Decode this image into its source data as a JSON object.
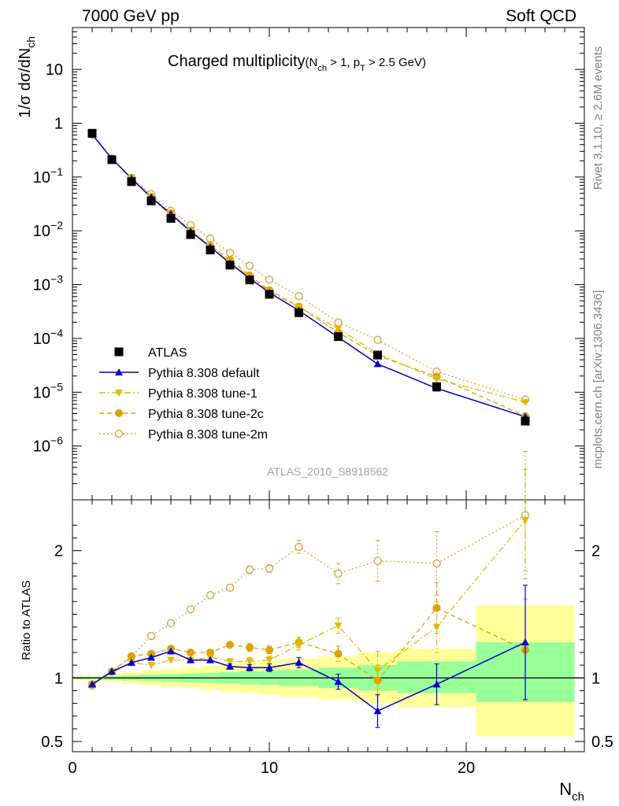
{
  "header": {
    "left": "7000 GeV pp",
    "right": "Soft QCD"
  },
  "side_labels": {
    "rivet": "Rivet 3.1.10, ≥ 2.6M events",
    "mcplots": "mcplots.cern.ch [arXiv:1306.3436]"
  },
  "analysis_id": "ATLAS_2010_S8918562",
  "title": {
    "main": "Charged multiplicity",
    "sub_open": "(N",
    "sub_ch": "ch",
    "sub_mid": " > 1, p",
    "sub_t": "T",
    "sub_end": " > 2.5 GeV)"
  },
  "colors": {
    "data": "#000000",
    "default": "#0000cc",
    "tune1": "#e6b800",
    "tune2c": "#e0a000",
    "tune2m": "#e0a040",
    "band_inner": "#99ff99",
    "band_outer": "#ffff99"
  },
  "chart_data": [
    {
      "type": "scatter",
      "panel": "main",
      "ylabel": "1/σ dσ/dN_ch",
      "yscale": "log",
      "xlim": [
        0,
        26
      ],
      "ylim": [
        1e-07,
        60
      ],
      "ytick_labels": [
        {
          "value": 10,
          "base": "10",
          "exp": ""
        },
        {
          "value": 1,
          "base": "1",
          "exp": ""
        },
        {
          "value": 0.1,
          "base": "10",
          "exp": "−1"
        },
        {
          "value": 0.01,
          "base": "10",
          "exp": "−2"
        },
        {
          "value": 0.001,
          "base": "10",
          "exp": "−3"
        },
        {
          "value": 0.0001,
          "base": "10",
          "exp": "−4"
        },
        {
          "value": 1e-05,
          "base": "10",
          "exp": "−5"
        },
        {
          "value": 1e-06,
          "base": "10",
          "exp": "−6"
        }
      ],
      "legend_position": "lower-left",
      "series": [
        {
          "key": "data",
          "name": "ATLAS",
          "style": "square",
          "x": [
            1,
            2,
            3,
            4,
            5,
            6,
            7,
            8,
            9,
            10,
            11.5,
            13.5,
            15.5,
            18.5,
            23
          ],
          "y": [
            0.65,
            0.21,
            0.082,
            0.036,
            0.017,
            0.0085,
            0.0044,
            0.0023,
            0.00122,
            0.00066,
            0.0003,
            0.000108,
            4.9e-05,
            1.27e-05,
            2.9e-06
          ]
        },
        {
          "key": "default",
          "name": "Pythia 8.308 default",
          "style": "triangle-up",
          "x": [
            1,
            2,
            3,
            4,
            5,
            6,
            7,
            8,
            9,
            10,
            11.5,
            13.5,
            15.5,
            18.5,
            23
          ],
          "y": [
            0.62,
            0.22,
            0.093,
            0.042,
            0.0205,
            0.0097,
            0.005,
            0.0025,
            0.00131,
            0.00071,
            0.00033,
            0.000105,
            3.35e-05,
            1.18e-05,
            3.5e-06
          ]
        },
        {
          "key": "tune1",
          "name": "Pythia 8.308 tune-1",
          "style": "triangle-down",
          "x": [
            1,
            2,
            3,
            4,
            5,
            6,
            7,
            8,
            9,
            10,
            11.5,
            13.5,
            15.5,
            18.5,
            23
          ],
          "y": [
            0.62,
            0.22,
            0.094,
            0.04,
            0.0195,
            0.0097,
            0.0051,
            0.0026,
            0.00138,
            0.00075,
            0.00038,
            0.000152,
            5.2e-05,
            1.76e-05,
            6.5e-06
          ]
        },
        {
          "key": "tune2c",
          "name": "Pythia 8.308 tune-2c",
          "style": "circle-filled",
          "x": [
            1,
            2,
            3,
            4,
            5,
            6,
            7,
            8,
            9,
            10,
            11.5,
            13.5,
            15.5,
            18.5,
            23
          ],
          "y": [
            0.62,
            0.22,
            0.096,
            0.043,
            0.0212,
            0.0102,
            0.0053,
            0.0029,
            0.00148,
            0.00079,
            0.00039,
            0.000129,
            4.8e-05,
            1.95e-05,
            3.6e-06
          ]
        },
        {
          "key": "tune2m",
          "name": "Pythia 8.308 tune-2m",
          "style": "circle-open",
          "x": [
            1,
            2,
            3,
            4,
            5,
            6,
            7,
            8,
            9,
            10,
            11.5,
            13.5,
            15.5,
            18.5,
            23
          ],
          "y": [
            0.61,
            0.22,
            0.097,
            0.048,
            0.0236,
            0.0128,
            0.0072,
            0.0039,
            0.00225,
            0.00124,
            0.00061,
            0.000198,
            9.4e-05,
            2.42e-05,
            7.3e-06
          ]
        }
      ]
    },
    {
      "type": "scatter",
      "panel": "ratio",
      "xlabel": "N_ch",
      "ylabel": "Ratio to ATLAS",
      "xlim": [
        0,
        26
      ],
      "ylim": [
        0.42,
        2.4
      ],
      "xticks": [
        0,
        10,
        20
      ],
      "yticks": [
        0.5,
        1,
        2
      ],
      "bands": {
        "edges": [
          0,
          1.5,
          2.5,
          3.5,
          4.5,
          5.5,
          6.5,
          7.5,
          8.5,
          9.5,
          10.5,
          12.5,
          14.5,
          16.5,
          20.5,
          25.5
        ],
        "inner_lo": [
          0.99,
          0.985,
          0.98,
          0.975,
          0.97,
          0.965,
          0.96,
          0.955,
          0.95,
          0.945,
          0.935,
          0.92,
          0.9,
          0.88,
          0.81
        ],
        "inner_hi": [
          1.01,
          1.015,
          1.02,
          1.025,
          1.03,
          1.035,
          1.04,
          1.045,
          1.05,
          1.055,
          1.065,
          1.08,
          1.1,
          1.13,
          1.28
        ],
        "outer_lo": [
          0.985,
          0.97,
          0.955,
          0.94,
          0.93,
          0.92,
          0.905,
          0.89,
          0.88,
          0.865,
          0.85,
          0.83,
          0.8,
          0.77,
          0.54
        ],
        "outer_hi": [
          1.015,
          1.03,
          1.045,
          1.06,
          1.07,
          1.08,
          1.095,
          1.11,
          1.12,
          1.135,
          1.15,
          1.17,
          1.2,
          1.23,
          1.57
        ]
      },
      "series": [
        {
          "key": "default",
          "name": "Pythia 8.308 default",
          "x": [
            1,
            2,
            3,
            4,
            5,
            6,
            7,
            8,
            9,
            10,
            11.5,
            13.5,
            15.5,
            18.5,
            23
          ],
          "y": [
            0.95,
            1.05,
            1.12,
            1.16,
            1.21,
            1.14,
            1.14,
            1.09,
            1.08,
            1.08,
            1.12,
            0.97,
            0.74,
            0.95,
            1.28
          ],
          "err": [
            0.01,
            0.01,
            0.01,
            0.01,
            0.01,
            0.01,
            0.015,
            0.02,
            0.025,
            0.03,
            0.04,
            0.06,
            0.13,
            0.16,
            0.45
          ]
        },
        {
          "key": "tune1",
          "name": "Pythia 8.308 tune-1",
          "x": [
            1,
            2,
            3,
            4,
            5,
            6,
            7,
            8,
            9,
            10,
            11.5,
            13.5,
            15.5,
            18.5,
            23
          ],
          "y": [
            0.95,
            1.04,
            1.12,
            1.1,
            1.14,
            1.14,
            1.16,
            1.13,
            1.13,
            1.14,
            1.26,
            1.41,
            1.06,
            1.4,
            2.24
          ],
          "err": [
            0.01,
            0.01,
            0.01,
            0.01,
            0.01,
            0.015,
            0.02,
            0.02,
            0.03,
            0.03,
            0.04,
            0.06,
            0.15,
            0.2,
            0.4
          ]
        },
        {
          "key": "tune2c",
          "name": "Pythia 8.308 tune-2c",
          "x": [
            1,
            2,
            3,
            4,
            5,
            6,
            7,
            8,
            9,
            10,
            11.5,
            13.5,
            15.5,
            18.5,
            23
          ],
          "y": [
            0.95,
            1.05,
            1.17,
            1.19,
            1.23,
            1.2,
            1.2,
            1.26,
            1.24,
            1.22,
            1.28,
            1.19,
            0.98,
            1.55,
            1.22
          ],
          "err": [
            0.01,
            0.01,
            0.01,
            0.01,
            0.01,
            0.015,
            0.02,
            0.02,
            0.03,
            0.03,
            0.04,
            0.06,
            0.12,
            0.2,
            0.4
          ]
        },
        {
          "key": "tune2m",
          "name": "Pythia 8.308 tune-2m",
          "x": [
            1,
            2,
            3,
            4,
            5,
            6,
            7,
            8,
            9,
            10,
            11.5,
            13.5,
            15.5,
            18.5,
            23
          ],
          "y": [
            0.94,
            1.05,
            1.17,
            1.33,
            1.43,
            1.54,
            1.65,
            1.71,
            1.85,
            1.86,
            2.03,
            1.82,
            1.92,
            1.9,
            2.28
          ],
          "err": [
            0.01,
            0.01,
            0.01,
            0.01,
            0.01,
            0.015,
            0.02,
            0.02,
            0.03,
            0.03,
            0.05,
            0.08,
            0.16,
            0.25,
            0.5
          ]
        }
      ]
    }
  ]
}
